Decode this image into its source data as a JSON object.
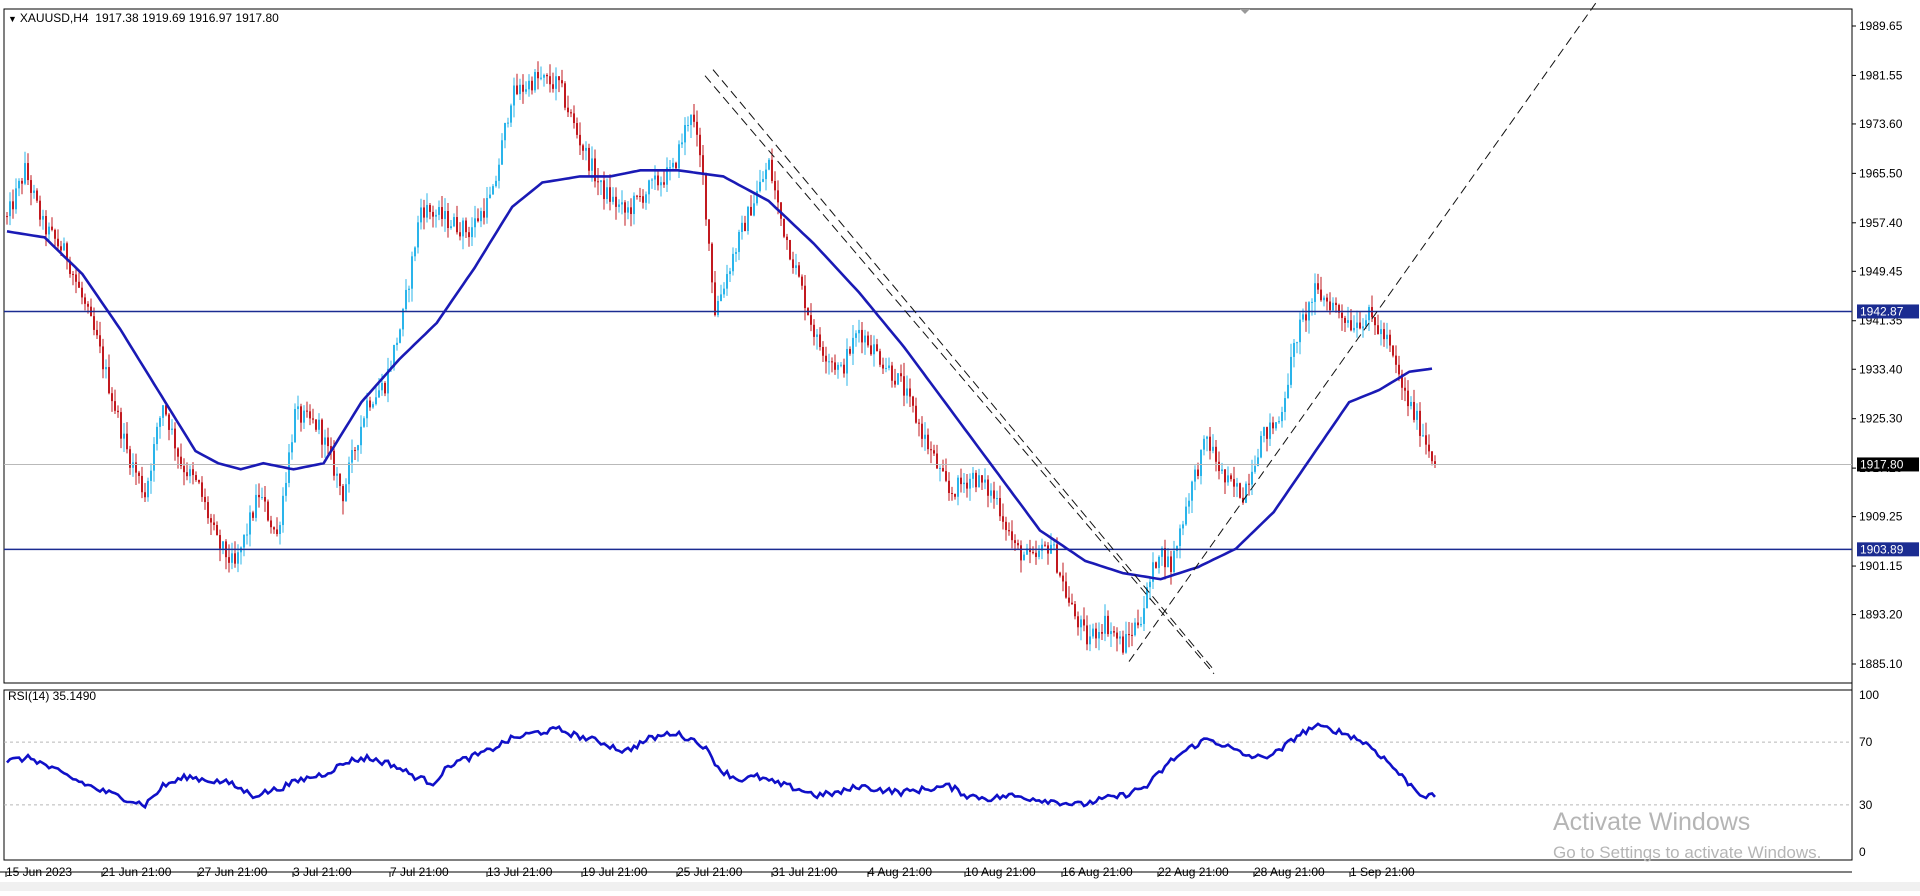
{
  "header": {
    "symbol": "XAUUSD,H4",
    "ohlc": "1917.38 1919.69 1916.97 1917.80",
    "menu_icon": "triangle-down-icon"
  },
  "rsi": {
    "label": "RSI(14) 35.1490",
    "levels": [
      "100",
      "70",
      "30",
      "0"
    ]
  },
  "watermark": {
    "title": "Activate Windows",
    "subtitle": "Go to Settings to activate Windows."
  },
  "colors": {
    "bull": "#2ab4ea",
    "bear": "#c2191f",
    "ma": "#1a1ab5",
    "line": "#1b2c91",
    "rsi": "#1010c8",
    "grid": "#b8b8b8"
  },
  "chart_data": [
    {
      "type": "candlestick",
      "symbol": "XAUUSD",
      "timeframe": "H4",
      "ylim": [
        1882,
        1995
      ],
      "y_ticks": [
        "1989.65",
        "1981.55",
        "1973.60",
        "1965.50",
        "1957.40",
        "1949.45",
        "1941.35",
        "1933.40",
        "1925.30",
        "1917.20",
        "1909.25",
        "1901.15",
        "1893.20",
        "1885.10"
      ],
      "x_ticks": [
        "15 Jun 2023",
        "21 Jun 21:00",
        "27 Jun 21:00",
        "3 Jul 21:00",
        "7 Jul 21:00",
        "13 Jul 21:00",
        "19 Jul 21:00",
        "25 Jul 21:00",
        "31 Jul 21:00",
        "4 Aug 21:00",
        "10 Aug 21:00",
        "16 Aug 21:00",
        "22 Aug 21:00",
        "28 Aug 21:00",
        "1 Sep 21:00"
      ],
      "price_labels": [
        {
          "value": "1942.87",
          "price": 1942.87
        },
        {
          "value": "1903.89",
          "price": 1903.89
        },
        {
          "value": "1917.80",
          "price": 1917.8
        }
      ],
      "close_anchors": [
        [
          0,
          1958
        ],
        [
          6,
          1966
        ],
        [
          12,
          1957
        ],
        [
          20,
          1952
        ],
        [
          30,
          1938
        ],
        [
          40,
          1920
        ],
        [
          46,
          1913
        ],
        [
          52,
          1928
        ],
        [
          58,
          1918
        ],
        [
          64,
          1914
        ],
        [
          70,
          1905
        ],
        [
          76,
          1901
        ],
        [
          84,
          1913
        ],
        [
          90,
          1906
        ],
        [
          96,
          1926
        ],
        [
          104,
          1924
        ],
        [
          112,
          1913
        ],
        [
          120,
          1928
        ],
        [
          126,
          1931
        ],
        [
          132,
          1942
        ],
        [
          138,
          1960
        ],
        [
          146,
          1958
        ],
        [
          154,
          1956
        ],
        [
          162,
          1962
        ],
        [
          168,
          1978
        ],
        [
          176,
          1981
        ],
        [
          184,
          1980
        ],
        [
          190,
          1972
        ],
        [
          198,
          1963
        ],
        [
          206,
          1959
        ],
        [
          214,
          1963
        ],
        [
          222,
          1966
        ],
        [
          228,
          1976
        ],
        [
          232,
          1965
        ],
        [
          236,
          1943
        ],
        [
          242,
          1952
        ],
        [
          248,
          1960
        ],
        [
          254,
          1967
        ],
        [
          258,
          1958
        ],
        [
          264,
          1948
        ],
        [
          270,
          1938
        ],
        [
          278,
          1933
        ],
        [
          284,
          1940
        ],
        [
          290,
          1936
        ],
        [
          298,
          1931
        ],
        [
          306,
          1922
        ],
        [
          314,
          1913
        ],
        [
          322,
          1916
        ],
        [
          330,
          1912
        ],
        [
          336,
          1904
        ],
        [
          342,
          1902
        ],
        [
          348,
          1905
        ],
        [
          354,
          1895
        ],
        [
          360,
          1889
        ],
        [
          366,
          1892
        ],
        [
          372,
          1888
        ],
        [
          378,
          1893
        ],
        [
          384,
          1904
        ],
        [
          388,
          1901
        ],
        [
          394,
          1913
        ],
        [
          400,
          1922
        ],
        [
          406,
          1915
        ],
        [
          412,
          1913
        ],
        [
          418,
          1922
        ],
        [
          424,
          1925
        ],
        [
          430,
          1939
        ],
        [
          436,
          1946
        ],
        [
          442,
          1944
        ],
        [
          448,
          1941
        ],
        [
          454,
          1942
        ],
        [
          460,
          1938
        ],
        [
          466,
          1929
        ],
        [
          472,
          1923
        ],
        [
          476,
          1917.8
        ]
      ],
      "ma_anchors": [
        [
          0,
          1956
        ],
        [
          10,
          1955
        ],
        [
          20,
          1949
        ],
        [
          30,
          1940
        ],
        [
          40,
          1930
        ],
        [
          50,
          1920
        ],
        [
          56,
          1918
        ],
        [
          62,
          1917
        ],
        [
          68,
          1918
        ],
        [
          76,
          1917
        ],
        [
          84,
          1918
        ],
        [
          94,
          1928
        ],
        [
          104,
          1935
        ],
        [
          114,
          1941
        ],
        [
          124,
          1950
        ],
        [
          134,
          1960
        ],
        [
          142,
          1964
        ],
        [
          152,
          1965
        ],
        [
          160,
          1965
        ],
        [
          168,
          1966
        ],
        [
          178,
          1966
        ],
        [
          190,
          1965
        ],
        [
          202,
          1961
        ],
        [
          214,
          1954
        ],
        [
          226,
          1946
        ],
        [
          238,
          1937
        ],
        [
          250,
          1927
        ],
        [
          262,
          1917
        ],
        [
          274,
          1907
        ],
        [
          286,
          1902
        ],
        [
          296,
          1900
        ],
        [
          306,
          1899
        ],
        [
          316,
          1901
        ],
        [
          326,
          1904
        ],
        [
          336,
          1910
        ],
        [
          346,
          1919
        ],
        [
          356,
          1928
        ],
        [
          364,
          1930
        ],
        [
          372,
          1933
        ],
        [
          378,
          1933.5
        ]
      ],
      "ma_x_offset": 98,
      "rsi_anchors": [
        [
          0,
          58
        ],
        [
          8,
          60
        ],
        [
          16,
          52
        ],
        [
          24,
          45
        ],
        [
          30,
          40
        ],
        [
          38,
          35
        ],
        [
          46,
          30
        ],
        [
          52,
          42
        ],
        [
          60,
          48
        ],
        [
          66,
          46
        ],
        [
          74,
          44
        ],
        [
          82,
          36
        ],
        [
          90,
          40
        ],
        [
          98,
          46
        ],
        [
          106,
          50
        ],
        [
          114,
          58
        ],
        [
          120,
          60
        ],
        [
          128,
          56
        ],
        [
          136,
          48
        ],
        [
          142,
          44
        ],
        [
          148,
          56
        ],
        [
          154,
          60
        ],
        [
          160,
          64
        ],
        [
          168,
          72
        ],
        [
          176,
          76
        ],
        [
          184,
          78
        ],
        [
          190,
          74
        ],
        [
          198,
          70
        ],
        [
          206,
          64
        ],
        [
          214,
          72
        ],
        [
          222,
          76
        ],
        [
          228,
          72
        ],
        [
          232,
          68
        ],
        [
          238,
          52
        ],
        [
          244,
          46
        ],
        [
          250,
          48
        ],
        [
          256,
          44
        ],
        [
          264,
          40
        ],
        [
          270,
          36
        ],
        [
          278,
          38
        ],
        [
          284,
          42
        ],
        [
          290,
          40
        ],
        [
          298,
          38
        ],
        [
          306,
          40
        ],
        [
          314,
          42
        ],
        [
          320,
          36
        ],
        [
          328,
          34
        ],
        [
          334,
          36
        ],
        [
          342,
          34
        ],
        [
          350,
          32
        ],
        [
          358,
          30
        ],
        [
          366,
          34
        ],
        [
          372,
          36
        ],
        [
          380,
          42
        ],
        [
          388,
          58
        ],
        [
          394,
          66
        ],
        [
          400,
          72
        ],
        [
          406,
          68
        ],
        [
          412,
          62
        ],
        [
          418,
          60
        ],
        [
          424,
          64
        ],
        [
          430,
          74
        ],
        [
          436,
          80
        ],
        [
          442,
          78
        ],
        [
          448,
          74
        ],
        [
          454,
          68
        ],
        [
          460,
          58
        ],
        [
          466,
          46
        ],
        [
          472,
          36
        ],
        [
          476,
          35.1
        ]
      ],
      "rsi_ylim": [
        0,
        100
      ],
      "horizontal_lines": [
        1942.87,
        1903.89
      ],
      "trendlines": [
        {
          "from": [
            "26 Jul",
            1981.5
          ],
          "to": [
            "21 Aug",
            1883.5
          ],
          "style": "dashed"
        },
        {
          "from": [
            "26 Jul",
            1982.5
          ],
          "to": [
            "21 Aug",
            1884.5
          ],
          "style": "dashed"
        },
        {
          "from": [
            "21 Aug",
            1885.5
          ],
          "to": [
            "9 Sep",
            1996.0
          ],
          "style": "dashed"
        }
      ],
      "grid": false,
      "legend": "none"
    }
  ]
}
